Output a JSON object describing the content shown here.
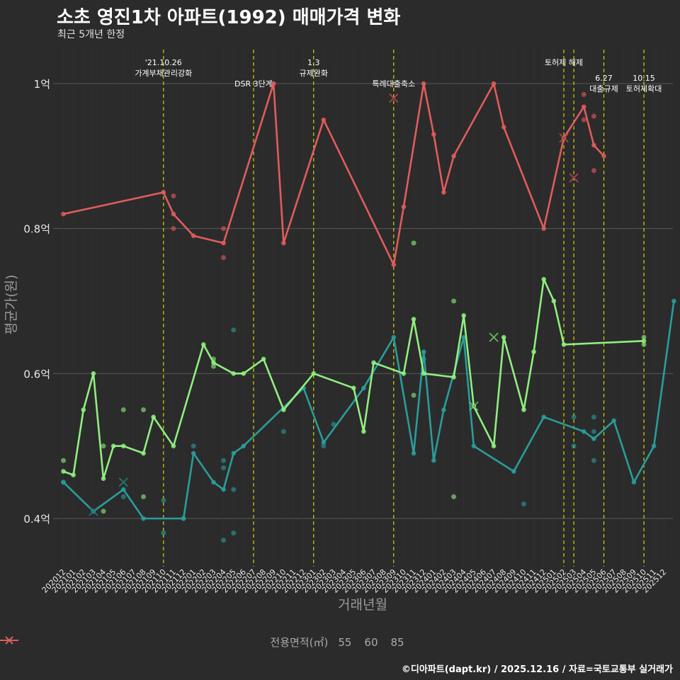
{
  "title": "소초 영진1차 아파트(1992) 매매가격 변화",
  "subtitle": "최근 5개년 한정",
  "caption": "©디아파트(dapt.kr) / 2025.12.16 / 자료=국토교통부 실거래가",
  "colors": {
    "s55": "#2a9d9a",
    "s60": "#90ee80",
    "s85": "#e05c5c",
    "vline": "#d4d400"
  },
  "chart_data": {
    "type": "line",
    "title": "소초 영진1차 아파트(1992) 매매가격 변화",
    "xlabel": "거래년월",
    "ylabel": "평균가(원)",
    "ylim": [
      0.34,
      1.05
    ],
    "y_ticks": [
      {
        "value": 0.4,
        "label": "0.4억"
      },
      {
        "value": 0.6,
        "label": "0.6억"
      },
      {
        "value": 0.8,
        "label": "0.8억"
      },
      {
        "value": 1.0,
        "label": "1억"
      }
    ],
    "x_ticks": [
      "202012",
      "202101",
      "202102",
      "202103",
      "202104",
      "202105",
      "202106",
      "202107",
      "202108",
      "202109",
      "202110",
      "202111",
      "202112",
      "202201",
      "202202",
      "202203",
      "202204",
      "202205",
      "202206",
      "202207",
      "202208",
      "202209",
      "202210",
      "202211",
      "202212",
      "202301",
      "202302",
      "202303",
      "202304",
      "202305",
      "202306",
      "202307",
      "202308",
      "202309",
      "202310",
      "202311",
      "202312",
      "202401",
      "202402",
      "202403",
      "202404",
      "202405",
      "202406",
      "202407",
      "202408",
      "202409",
      "202410",
      "202411",
      "202412",
      "202501",
      "202502",
      "202503",
      "202504",
      "202505",
      "202506",
      "202507",
      "202508",
      "202509",
      "202510",
      "202511",
      "202512"
    ],
    "legend_title": "전용면적(㎡)",
    "events": [
      {
        "i": 10,
        "label": "'21.10.26\n가계부채관리강화",
        "row": 0
      },
      {
        "i": 19,
        "label": "DSR 3단계",
        "row": 1
      },
      {
        "i": 25,
        "label": "1.3\n규제완화",
        "row": 0
      },
      {
        "i": 33,
        "label": "특례대출축소",
        "row": 1
      },
      {
        "i": 50,
        "label": "토허제 해제",
        "row": 0
      },
      {
        "i": 51,
        "label": "",
        "row": 0
      },
      {
        "i": 54,
        "label": "6.27\n대출규제",
        "row": 2
      },
      {
        "i": 58,
        "label": "10.15\n토허제확대",
        "row": 2
      }
    ],
    "series": [
      {
        "name": "55",
        "color_key": "s55",
        "line": [
          [
            0,
            0.45
          ],
          [
            3,
            0.41
          ],
          [
            6,
            0.44
          ],
          [
            8,
            0.4
          ],
          [
            12,
            0.4
          ],
          [
            13,
            0.49
          ],
          [
            15,
            0.45
          ],
          [
            16,
            0.44
          ],
          [
            17,
            0.49
          ],
          [
            18,
            0.5
          ],
          [
            24,
            0.58
          ],
          [
            26,
            0.505
          ],
          [
            30,
            0.58
          ],
          [
            33,
            0.65
          ],
          [
            35,
            0.49
          ],
          [
            36,
            0.63
          ],
          [
            37,
            0.48
          ],
          [
            38,
            0.55
          ],
          [
            40,
            0.65
          ],
          [
            41,
            0.5
          ],
          [
            45,
            0.465
          ],
          [
            48,
            0.54
          ],
          [
            52,
            0.52
          ],
          [
            53,
            0.51
          ],
          [
            55,
            0.535
          ],
          [
            57,
            0.45
          ],
          [
            59,
            0.5
          ],
          [
            61,
            0.7
          ]
        ],
        "points": [
          [
            0,
            0.45
          ],
          [
            6,
            0.43
          ],
          [
            10,
            0.425
          ],
          [
            10,
            0.38
          ],
          [
            12,
            0.4
          ],
          [
            13,
            0.5
          ],
          [
            16,
            0.48
          ],
          [
            16,
            0.47
          ],
          [
            16,
            0.37
          ],
          [
            17,
            0.44
          ],
          [
            17,
            0.38
          ],
          [
            17,
            0.66
          ],
          [
            22,
            0.52
          ],
          [
            26,
            0.5
          ],
          [
            27,
            0.53
          ],
          [
            36,
            0.62
          ],
          [
            46,
            0.42
          ],
          [
            51,
            0.54
          ],
          [
            51,
            0.5
          ],
          [
            53,
            0.54
          ],
          [
            53,
            0.52
          ],
          [
            53,
            0.48
          ]
        ],
        "x_marks": [
          [
            3,
            0.41
          ],
          [
            6,
            0.45
          ]
        ]
      },
      {
        "name": "60",
        "color_key": "s60",
        "line": [
          [
            0,
            0.465
          ],
          [
            1,
            0.46
          ],
          [
            2,
            0.55
          ],
          [
            3,
            0.6
          ],
          [
            4,
            0.455
          ],
          [
            5,
            0.5
          ],
          [
            6,
            0.5
          ],
          [
            8,
            0.49
          ],
          [
            9,
            0.54
          ],
          [
            11,
            0.5
          ],
          [
            14,
            0.64
          ],
          [
            15,
            0.615
          ],
          [
            17,
            0.6
          ],
          [
            18,
            0.6
          ],
          [
            20,
            0.62
          ],
          [
            22,
            0.55
          ],
          [
            25,
            0.6
          ],
          [
            29,
            0.58
          ],
          [
            30,
            0.52
          ],
          [
            31,
            0.615
          ],
          [
            34,
            0.6
          ],
          [
            35,
            0.675
          ],
          [
            36,
            0.6
          ],
          [
            39,
            0.595
          ],
          [
            40,
            0.68
          ],
          [
            41,
            0.555
          ],
          [
            43,
            0.5
          ],
          [
            44,
            0.65
          ],
          [
            46,
            0.55
          ],
          [
            47,
            0.63
          ],
          [
            48,
            0.73
          ],
          [
            49,
            0.7
          ],
          [
            50,
            0.64
          ],
          [
            58,
            0.645
          ]
        ],
        "points": [
          [
            0,
            0.48
          ],
          [
            4,
            0.5
          ],
          [
            4,
            0.41
          ],
          [
            6,
            0.55
          ],
          [
            8,
            0.55
          ],
          [
            8,
            0.43
          ],
          [
            15,
            0.62
          ],
          [
            15,
            0.61
          ],
          [
            35,
            0.57
          ],
          [
            35,
            0.78
          ],
          [
            39,
            0.7
          ],
          [
            39,
            0.43
          ],
          [
            58,
            0.65
          ],
          [
            58,
            0.64
          ]
        ],
        "x_marks": [
          [
            41,
            0.555
          ],
          [
            43,
            0.65
          ]
        ]
      },
      {
        "name": "85",
        "color_key": "s85",
        "line": [
          [
            0,
            0.82
          ],
          [
            10,
            0.85
          ],
          [
            11,
            0.82
          ],
          [
            13,
            0.79
          ],
          [
            16,
            0.78
          ],
          [
            21,
            1.0
          ],
          [
            22,
            0.78
          ],
          [
            26,
            0.95
          ],
          [
            33,
            0.75
          ],
          [
            34,
            0.83
          ],
          [
            36,
            1.0
          ],
          [
            37,
            0.93
          ],
          [
            38,
            0.85
          ],
          [
            39,
            0.9
          ],
          [
            43,
            1.0
          ],
          [
            44,
            0.94
          ],
          [
            48,
            0.8
          ],
          [
            50,
            0.925
          ],
          [
            52,
            0.968
          ],
          [
            53,
            0.915
          ],
          [
            54,
            0.9
          ]
        ],
        "points": [
          [
            11,
            0.845
          ],
          [
            11,
            0.8
          ],
          [
            16,
            0.8
          ],
          [
            16,
            0.76
          ],
          [
            52,
            0.985
          ],
          [
            52,
            0.95
          ],
          [
            53,
            0.955
          ],
          [
            53,
            0.88
          ]
        ],
        "x_marks": [
          [
            33,
            0.98
          ],
          [
            50,
            0.925
          ],
          [
            51,
            0.87
          ]
        ]
      }
    ]
  }
}
